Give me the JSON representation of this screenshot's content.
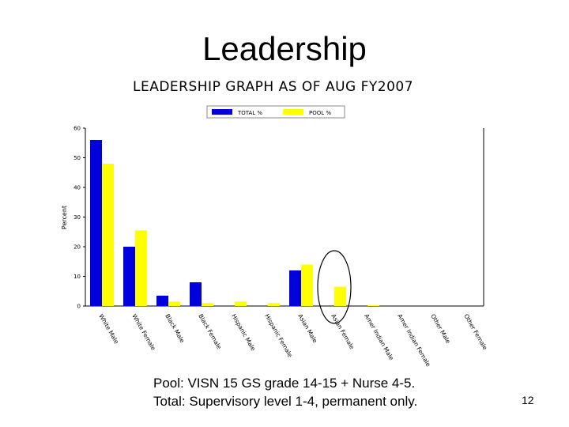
{
  "slide": {
    "title": "Leadership",
    "caption_line1": "Pool: VISN 15 GS grade 14-15 + Nurse 4-5.",
    "caption_line2": "Total: Supervisory level 1-4, permanent only.",
    "page_number": "12"
  },
  "colors": {
    "total": "#0000dd",
    "pool": "#ffff00",
    "highlight_circle": "#000000"
  },
  "chart_data": {
    "type": "bar",
    "title": "LEADERSHIP GRAPH AS OF AUG FY2007",
    "ylabel": "Percent",
    "xlabel": "",
    "ylim": [
      0,
      60
    ],
    "yticks": [
      0,
      10,
      20,
      30,
      40,
      50,
      60
    ],
    "legend_position": "top",
    "grid": false,
    "categories": [
      "White Male",
      "White Female",
      "Black Male",
      "Black Female",
      "Hispanic Male",
      "Hispanic Female",
      "Asian Male",
      "Asian Female",
      "Amer Indian Male",
      "Amer Indian Female",
      "Other Male",
      "Other Female"
    ],
    "series": [
      {
        "name": "TOTAL %",
        "values": [
          56,
          20,
          3.5,
          8,
          0,
          0,
          12,
          0,
          0,
          0,
          0,
          0
        ]
      },
      {
        "name": "POOL %",
        "values": [
          48,
          25.5,
          1.5,
          1,
          1.5,
          1,
          14,
          6.5,
          0.3,
          0,
          0,
          0
        ]
      }
    ],
    "highlighted_category": "Asian Female"
  }
}
